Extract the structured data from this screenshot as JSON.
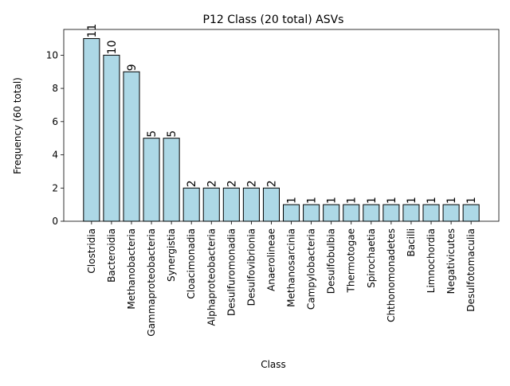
{
  "chart_data": {
    "type": "bar",
    "title": "P12 Class (20 total) ASVs",
    "xlabel": "Class",
    "ylabel": "Frequency (60 total)",
    "categories": [
      "Clostridia",
      "Bacteroidia",
      "Methanobacteria",
      "Gammaproteobacteria",
      "Synergistia",
      "Cloacimonadia",
      "Alphaproteobacteria",
      "Desulfuromonadia",
      "Desulfovibrionia",
      "Anaerolineae",
      "Methanosarcinia",
      "Campylobacteria",
      "Desulfobulbia",
      "Thermotogae",
      "Spirochaetia",
      "Chthonomonadetes",
      "Bacilli",
      "Limnochordia",
      "Negativicutes",
      "Desulfotomaculia"
    ],
    "values": [
      11,
      10,
      9,
      5,
      5,
      2,
      2,
      2,
      2,
      2,
      1,
      1,
      1,
      1,
      1,
      1,
      1,
      1,
      1,
      1
    ],
    "ylim": [
      0,
      11.55
    ],
    "yticks": [
      0,
      2,
      4,
      6,
      8,
      10
    ],
    "grid": false,
    "bar_color": "#add8e6",
    "bar_edge_color": "#000000"
  }
}
